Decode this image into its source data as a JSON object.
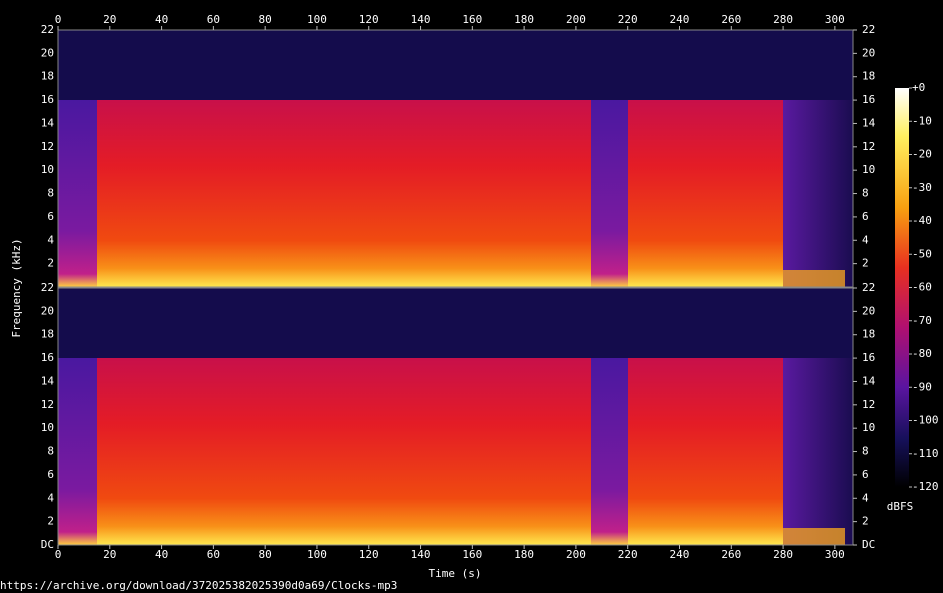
{
  "chart_data": {
    "type": "spectrogram",
    "x_label": "Time (s)",
    "y_label": "Frequency (kHz)",
    "xlim": [
      0,
      307
    ],
    "xticks": [
      0,
      20,
      40,
      60,
      80,
      100,
      120,
      140,
      160,
      180,
      200,
      220,
      240,
      260,
      280,
      300
    ],
    "channels": [
      {
        "ylim": [
          0,
          22
        ],
        "yticks": [
          2,
          4,
          6,
          8,
          10,
          12,
          14,
          16,
          18,
          20,
          22
        ]
      },
      {
        "ylim": [
          0,
          22
        ],
        "yticks": [
          {
            "value": 0,
            "label": "DC"
          },
          2,
          4,
          6,
          8,
          10,
          12,
          14,
          16,
          18,
          20,
          22
        ]
      }
    ],
    "colorbar": {
      "label": "dBFS",
      "lim": [
        -120,
        0
      ],
      "ticks": [
        {
          "value": 0,
          "label": "+0"
        },
        -10,
        -20,
        -30,
        -40,
        -50,
        -60,
        -70,
        -80,
        -90,
        -100,
        -110,
        -120
      ]
    }
  },
  "footer": "https://archive.org/download/372025382025390d0a69/Clocks-mp3"
}
